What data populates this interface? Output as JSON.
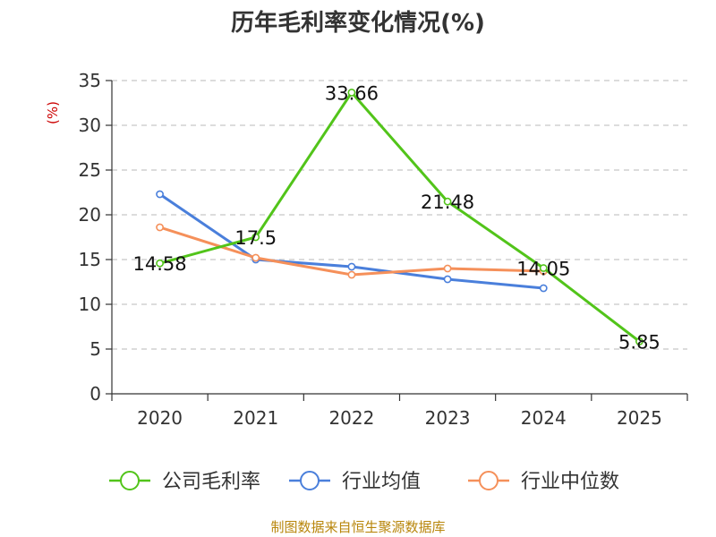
{
  "chart_data": {
    "type": "line",
    "title": "历年毛利率变化情况(%)",
    "ylabel": "(%)",
    "xlabel": "",
    "categories": [
      "2020",
      "2021",
      "2022",
      "2023",
      "2024",
      "2025"
    ],
    "ylim": [
      0,
      35
    ],
    "yticks": [
      0,
      5,
      10,
      15,
      20,
      25,
      30,
      35
    ],
    "grid": true,
    "legend_position": "bottom",
    "series": [
      {
        "name": "公司毛利率",
        "color": "#52c41a",
        "values": [
          14.58,
          17.5,
          33.66,
          21.48,
          14.05,
          5.85
        ],
        "labels": [
          "14.58",
          "17.5",
          "33.66",
          "21.48",
          "14.05",
          "5.85"
        ]
      },
      {
        "name": "行业均值",
        "color": "#4a7fdb",
        "values": [
          22.3,
          15.0,
          14.2,
          12.8,
          11.8,
          null
        ]
      },
      {
        "name": "行业中位数",
        "color": "#f5905a",
        "values": [
          18.6,
          15.2,
          13.3,
          14.0,
          13.7,
          null
        ]
      }
    ],
    "source": "制图数据来自恒生聚源数据库"
  }
}
